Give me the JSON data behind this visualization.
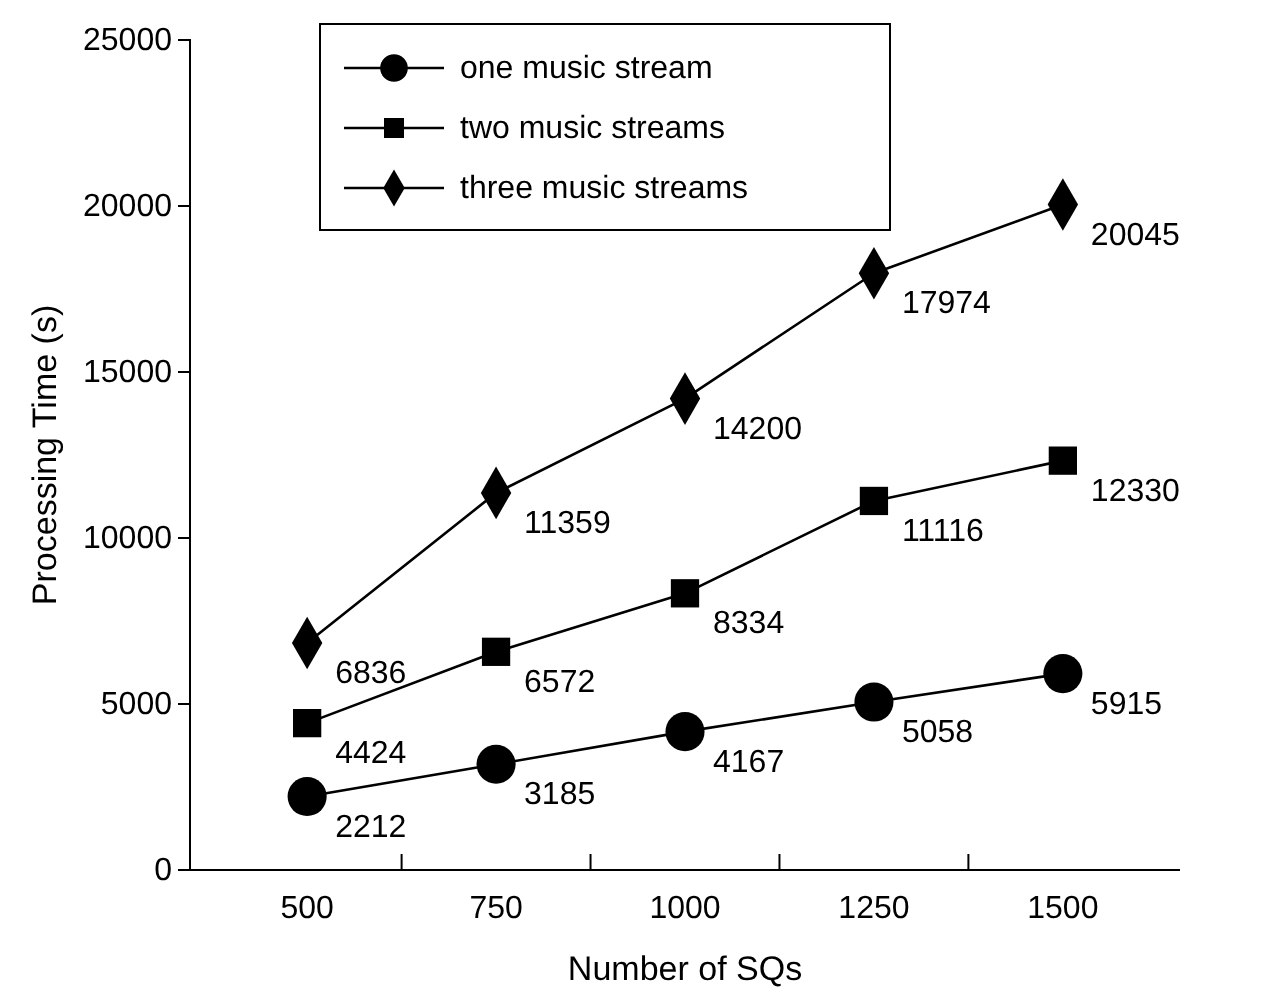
{
  "chart_data": {
    "type": "line",
    "xlabel": "Number of SQs",
    "ylabel": "Processing Time (s)",
    "categories": [
      "500",
      "750",
      "1000",
      "1250",
      "1500"
    ],
    "ylim": [
      0,
      25000
    ],
    "yticks": [
      0,
      5000,
      10000,
      15000,
      20000,
      25000
    ],
    "legend": "top left",
    "data_labels": true,
    "line_style": "solid",
    "series": [
      {
        "name": "one music stream",
        "color": "#000000",
        "marker": "circle",
        "values": [
          2212,
          3185,
          4167,
          5058,
          5915
        ]
      },
      {
        "name": "two music streams",
        "color": "#000000",
        "marker": "square",
        "values": [
          4424,
          6572,
          8334,
          11116,
          12330
        ]
      },
      {
        "name": "three music streams",
        "color": "#000000",
        "marker": "diamond",
        "values": [
          6836,
          11359,
          14200,
          17974,
          20045
        ]
      }
    ]
  }
}
